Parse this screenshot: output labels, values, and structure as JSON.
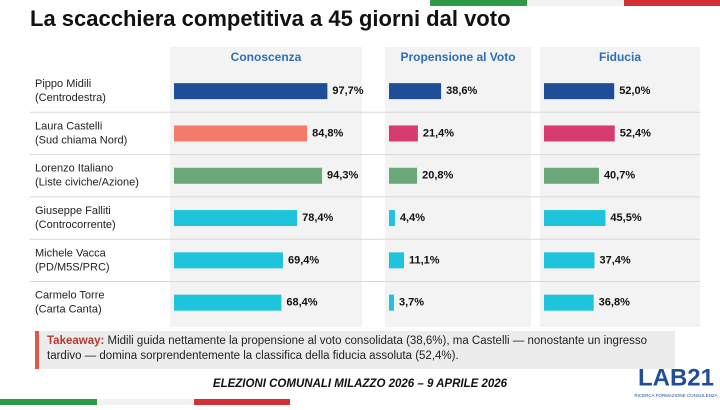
{
  "chart_data": {
    "type": "bar",
    "orientation": "horizontal",
    "title": "La scacchiera competitiva a 45 giorni dal voto",
    "categories": [
      "Pippo Midili",
      "Laura Castelli",
      "Lorenzo Italiano",
      "Giuseppe Falliti",
      "Michele Vacca",
      "Carmelo Torre"
    ],
    "subcategories": [
      "(Centrodestra)",
      "(Sud chiama Nord)",
      "(Liste civiche/Azione)",
      "(Controcorrente)",
      "(PD/M5S/PRC)",
      "(Carta Canta)"
    ],
    "xlim": [
      0,
      100
    ],
    "series": [
      {
        "name": "Conoscenza",
        "values": [
          97.7,
          84.8,
          94.3,
          78.4,
          69.4,
          68.4
        ],
        "value_labels": [
          "97,7%",
          "84,8%",
          "94,3%",
          "78,4%",
          "69,4%",
          "68,4%"
        ],
        "colors": [
          "#1f4e99",
          "#f47a6a",
          "#6aa87a",
          "#1ec3dc",
          "#1ec3dc",
          "#1ec3dc"
        ]
      },
      {
        "name": "Propensione al Voto",
        "values": [
          38.6,
          21.4,
          20.8,
          4.4,
          11.1,
          3.7
        ],
        "value_labels": [
          "38,6%",
          "21,4%",
          "20,8%",
          "4,4%",
          "11,1%",
          "3,7%"
        ],
        "colors": [
          "#1f4e99",
          "#d63a6e",
          "#6aa87a",
          "#1ec3dc",
          "#1ec3dc",
          "#1ec3dc"
        ]
      },
      {
        "name": "Fiducia",
        "values": [
          52.0,
          52.4,
          40.7,
          45.5,
          37.4,
          36.8
        ],
        "value_labels": [
          "52,0%",
          "52,4%",
          "40,7%",
          "45,5%",
          "37,4%",
          "36,8%"
        ],
        "colors": [
          "#1f4e99",
          "#d63a6e",
          "#6aa87a",
          "#1ec3dc",
          "#1ec3dc",
          "#1ec3dc"
        ]
      }
    ]
  },
  "takeaway": {
    "label": "Takeaway:",
    "text": "Midili guida nettamente la propensione al voto consolidata (38,6%), ma Castelli — nonostante un ingresso tardivo — domina sorprendentemente la classifica della fiducia assoluta (52,4%)."
  },
  "footer": "ELEZIONI COMUNALI MILAZZO 2026 – 9 APRILE 2026",
  "logo": {
    "name": "LAB21",
    "tagline": "RICERCA FORMAZIONE CONSULENZA"
  }
}
